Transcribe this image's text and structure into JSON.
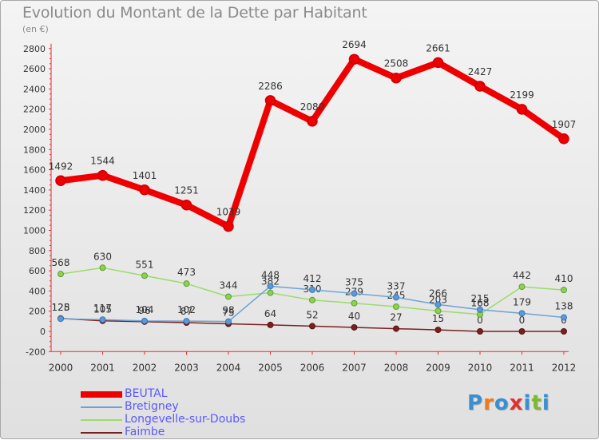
{
  "title": "Evolution du Montant de la Dette par Habitant",
  "subtitle": "(en €)",
  "logo": {
    "text": "Proxiti",
    "letter_colors": [
      "#3a8fd0",
      "#f07a20",
      "#3a8fd0",
      "#e23030",
      "#3a8fd0",
      "#80b830",
      "#3a8fd0"
    ]
  },
  "chart_data": {
    "type": "line",
    "x": [
      "2000",
      "2001",
      "2002",
      "2003",
      "2004",
      "2005",
      "2006",
      "2007",
      "2008",
      "2009",
      "2010",
      "2011",
      "2012"
    ],
    "ylim": [
      -200,
      2800
    ],
    "yticks": [
      "-200",
      "0",
      "200",
      "400",
      "600",
      "800",
      "1000",
      "1200",
      "1400",
      "1600",
      "1800",
      "2000",
      "2200",
      "2400",
      "2600",
      "2800"
    ],
    "grid": false,
    "legend_position": "bottom-left",
    "series": [
      {
        "name": "BEUTAL",
        "color": "#ee0000",
        "values": [
          1492,
          1544,
          1401,
          1251,
          1039,
          2286,
          2080,
          2694,
          2508,
          2661,
          2427,
          2199,
          1907
        ],
        "labels": [
          "1492",
          "1544",
          "1401",
          "1251",
          "1039",
          "2286",
          "2080",
          "2694",
          "2508",
          "2661",
          "2427",
          "2199",
          "1907"
        ]
      },
      {
        "name": "Bretigney",
        "color": "#6ba3d6",
        "values": [
          125,
          117,
          104,
          102,
          98,
          448,
          412,
          375,
          337,
          266,
          215,
          179,
          138
        ],
        "labels": [
          "125",
          "117",
          "104",
          "102",
          "98",
          "448",
          "412",
          "375",
          "337",
          "266",
          "215",
          "179",
          "138"
        ]
      },
      {
        "name": "Longevelle-sur-Doubs",
        "color": "#99dd66",
        "values": [
          568,
          630,
          551,
          473,
          344,
          382,
          310,
          279,
          245,
          203,
          168,
          442,
          410
        ],
        "labels": [
          "568",
          "630",
          "551",
          "473",
          "344",
          "382",
          "310",
          "279",
          "245",
          "203",
          "168",
          "442",
          "410"
        ]
      },
      {
        "name": "Faimbe",
        "color": "#7a2020",
        "values": [
          128,
          105,
          96,
          87,
          75,
          64,
          52,
          40,
          27,
          15,
          0,
          0,
          0
        ],
        "labels": [
          "128",
          "105",
          "96",
          "87",
          "75",
          "64",
          "52",
          "40",
          "27",
          "15",
          "0",
          "0",
          "0"
        ]
      }
    ]
  }
}
